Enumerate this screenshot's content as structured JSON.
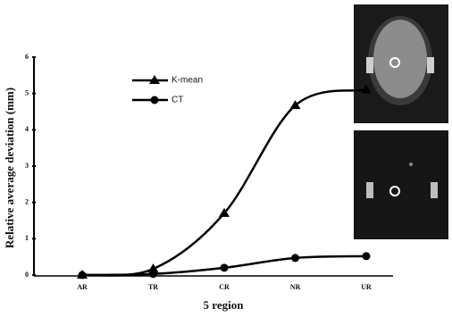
{
  "chart_data": {
    "type": "line",
    "xlabel": "5 region",
    "ylabel": "Relative average deviation (mm)",
    "categories": [
      "AR",
      "TR",
      "CR",
      "NR",
      "UR"
    ],
    "series": [
      {
        "name": "K-mean",
        "color": "#000000",
        "marker": "triangle",
        "values": [
          0,
          0.17,
          1.7,
          4.67,
          5.1
        ]
      },
      {
        "name": "CT",
        "color": "#000000",
        "marker": "circle",
        "values": [
          0,
          0.03,
          0.2,
          0.47,
          0.52
        ]
      }
    ],
    "ylim": [
      0,
      6
    ],
    "yticks": [
      0,
      1,
      2,
      3,
      4,
      5,
      6
    ],
    "grid": false,
    "legend": "upper center"
  }
}
